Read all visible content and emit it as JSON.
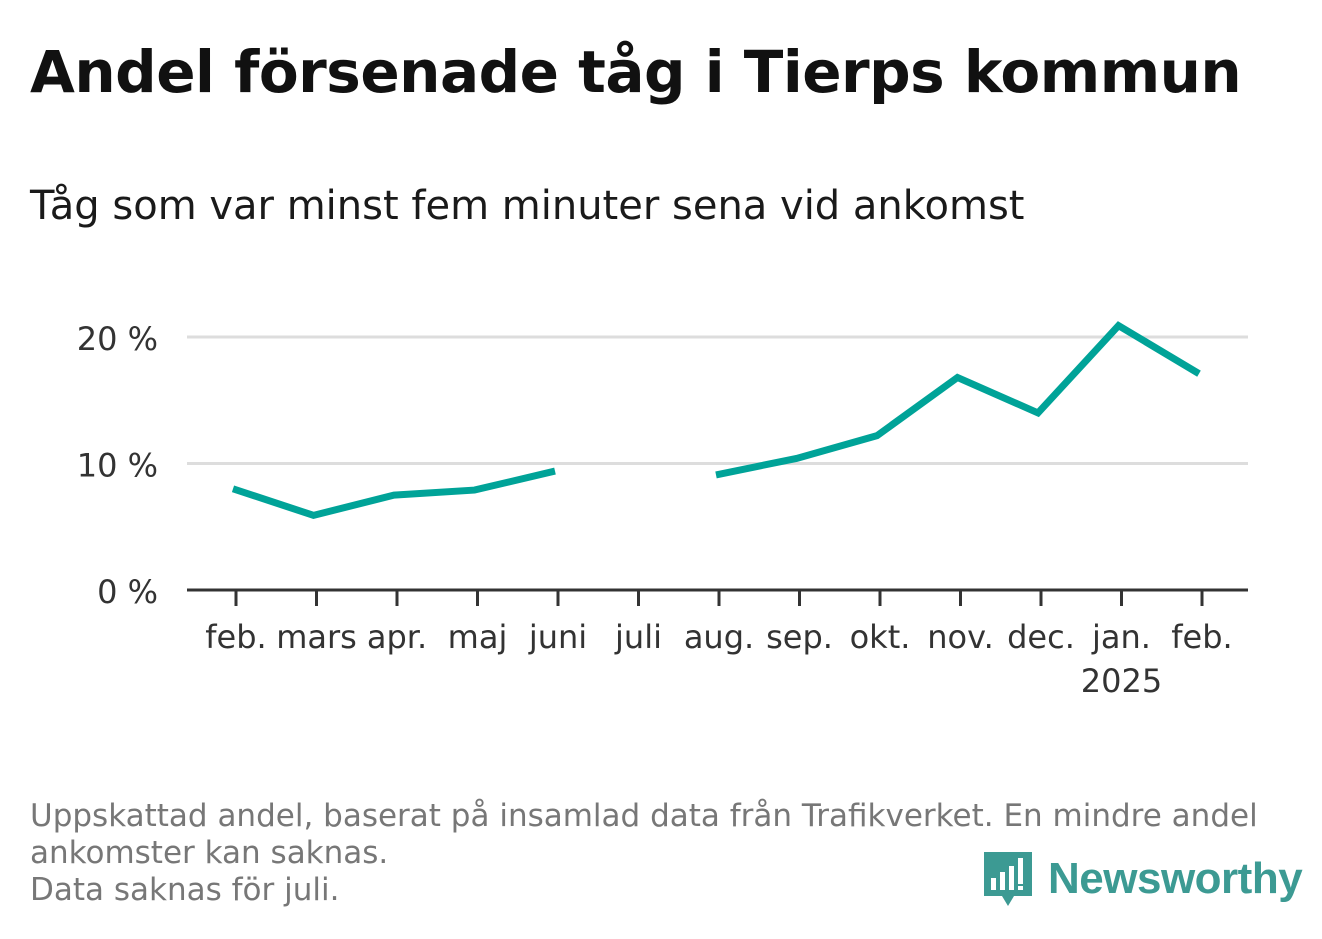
{
  "title": "Andel försenade tåg i Tierps kommun",
  "subtitle": "Tåg som var minst fem minuter sena vid ankomst",
  "note": {
    "line1": "Uppskattad andel, baserat på insamlad data från Trafikverket. En mindre andel ankomster kan saknas.",
    "line2": "Data saknas för juli."
  },
  "brand": {
    "name": "Newsworthy",
    "icon": "newsworthy-logo-icon",
    "color": "#3c9a93"
  },
  "chart_data": {
    "type": "line",
    "categories": [
      "feb.",
      "mars",
      "apr.",
      "maj",
      "juni",
      "juli",
      "aug.",
      "sep.",
      "okt.",
      "nov.",
      "dec.",
      "jan.",
      "feb."
    ],
    "year_label": {
      "text": "2025",
      "under_category_index": 11
    },
    "series": [
      {
        "values": [
          8.0,
          5.9,
          7.5,
          7.9,
          9.4,
          null,
          9.1,
          10.4,
          12.2,
          16.8,
          14.0,
          20.9,
          17.1
        ],
        "color": "#00a398"
      }
    ],
    "ylim": [
      0,
      22
    ],
    "yticks": [
      {
        "value": 0,
        "label": "0 %"
      },
      {
        "value": 10,
        "label": "10 %"
      },
      {
        "value": 20,
        "label": "20 %"
      }
    ],
    "grid": true,
    "legend": "none"
  }
}
